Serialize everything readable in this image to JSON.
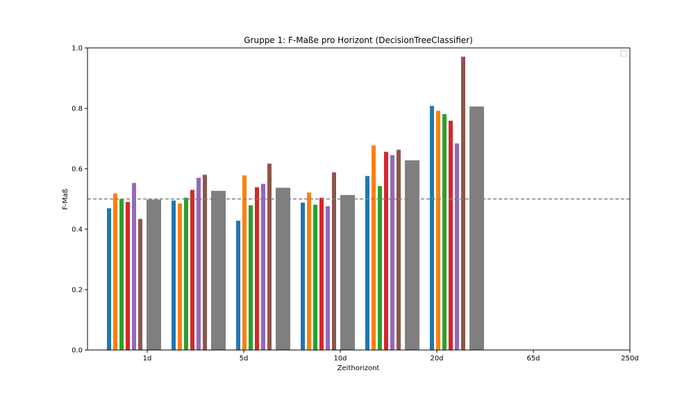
{
  "chart_data": {
    "type": "bar",
    "title": "Gruppe 1: F-Maße pro Horizont (DecisionTreeClassifier)",
    "xlabel": "Zeithorizont",
    "ylabel": "F-Maß",
    "x_ticks": [
      "1d",
      "5d",
      "10d",
      "20d",
      "65d",
      "250d"
    ],
    "ylim": [
      0,
      1.0
    ],
    "y_ticks": [
      "0.0",
      "0.2",
      "0.4",
      "0.6",
      "0.8",
      "1.0"
    ],
    "reference_line": 0.5,
    "legend_placement": "top-right",
    "grid": false,
    "groups": [
      {
        "values": [
          0.469,
          0.518,
          0.5,
          0.49,
          0.553,
          0.434
        ],
        "aggregate": 0.498
      },
      {
        "values": [
          0.495,
          0.485,
          0.504,
          0.53,
          0.57,
          0.58
        ],
        "aggregate": 0.527
      },
      {
        "values": [
          0.428,
          0.578,
          0.479,
          0.539,
          0.55,
          0.617
        ],
        "aggregate": 0.537
      },
      {
        "values": [
          0.488,
          0.521,
          0.481,
          0.504,
          0.476,
          0.588
        ],
        "aggregate": 0.513
      },
      {
        "values": [
          0.576,
          0.677,
          0.543,
          0.656,
          0.645,
          0.663
        ],
        "aggregate": 0.628
      },
      {
        "values": [
          0.808,
          0.792,
          0.781,
          0.759,
          0.684,
          0.971
        ],
        "aggregate": 0.806
      }
    ],
    "colors": [
      "#1f77b4",
      "#ff7f0e",
      "#2ca02c",
      "#d62728",
      "#9467bd",
      "#8c564b"
    ],
    "aggregate_color": "#7f7f7f",
    "reference_line_color": "#808080"
  }
}
